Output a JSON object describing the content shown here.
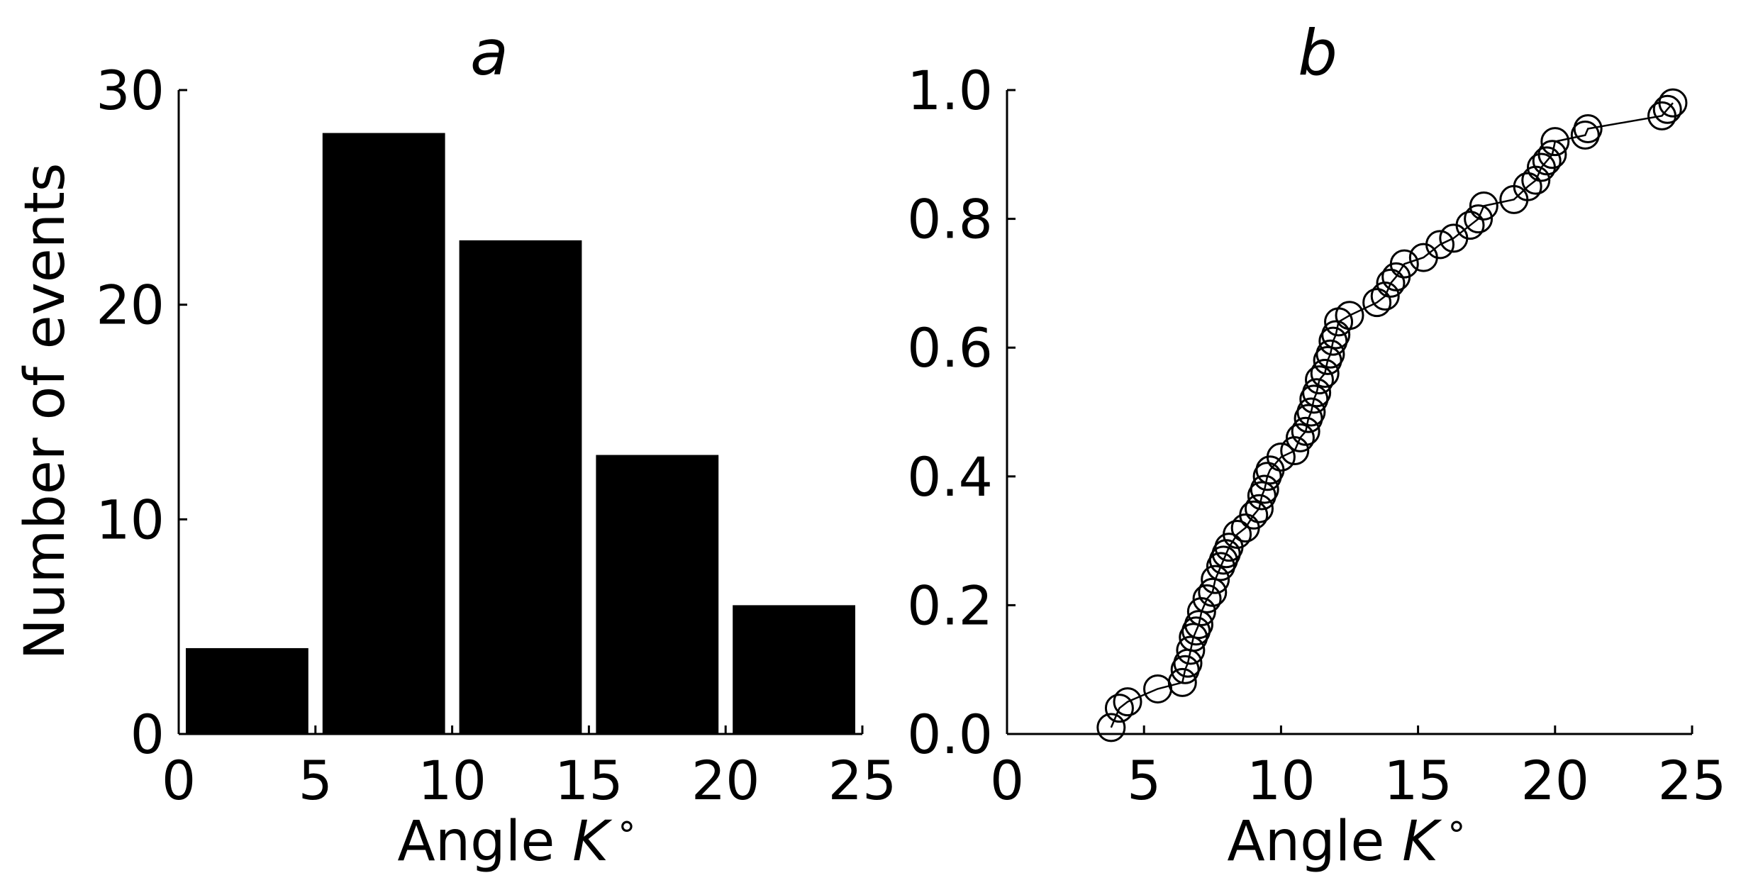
{
  "chart_data": [
    {
      "type": "bar",
      "panel": "a",
      "title": "a",
      "xlabel": "Angle K°",
      "xlabel_main": "Angle ",
      "xlabel_var": "K",
      "xlabel_unit": "∘",
      "ylabel": "Number of events",
      "xlim": [
        0,
        25
      ],
      "ylim": [
        0,
        30
      ],
      "xticks": [
        0,
        5,
        10,
        15,
        20,
        25
      ],
      "yticks": [
        0,
        10,
        20,
        30
      ],
      "bins": [
        [
          0,
          5
        ],
        [
          5,
          10
        ],
        [
          10,
          15
        ],
        [
          15,
          20
        ],
        [
          20,
          25
        ]
      ],
      "values": [
        4,
        28,
        23,
        13,
        6
      ],
      "bar_color": "#000000"
    },
    {
      "type": "line",
      "panel": "b",
      "title": "b",
      "xlabel": "Angle K°",
      "xlabel_main": "Angle ",
      "xlabel_var": "K",
      "xlabel_unit": "∘",
      "ylabel": "",
      "xlim": [
        0,
        25
      ],
      "ylim": [
        0,
        1
      ],
      "xticks": [
        0,
        5,
        10,
        15,
        20,
        25
      ],
      "yticks": [
        0.0,
        0.2,
        0.4,
        0.6,
        0.8,
        1.0
      ],
      "ytick_labels": [
        "0.0",
        "0.2",
        "0.4",
        "0.6",
        "0.8",
        "1.0"
      ],
      "marker": "open-circle",
      "x": [
        3.8,
        4.1,
        4.4,
        5.5,
        6.4,
        6.5,
        6.6,
        6.7,
        6.8,
        6.9,
        7.0,
        7.1,
        7.3,
        7.5,
        7.6,
        7.8,
        7.9,
        8.0,
        8.1,
        8.4,
        8.7,
        9.0,
        9.2,
        9.3,
        9.4,
        9.5,
        9.6,
        10.0,
        10.5,
        10.7,
        10.9,
        11.0,
        11.1,
        11.2,
        11.3,
        11.4,
        11.6,
        11.7,
        11.8,
        11.9,
        12.0,
        12.1,
        12.5,
        13.5,
        13.8,
        14.0,
        14.2,
        14.5,
        15.2,
        15.8,
        16.3,
        16.9,
        17.2,
        17.4,
        18.5,
        19.0,
        19.3,
        19.5,
        19.7,
        19.9,
        20.0,
        21.1,
        21.2,
        23.9,
        24.1,
        24.3
      ],
      "y": [
        0.01,
        0.04,
        0.05,
        0.07,
        0.08,
        0.1,
        0.11,
        0.13,
        0.15,
        0.16,
        0.17,
        0.19,
        0.21,
        0.22,
        0.24,
        0.26,
        0.27,
        0.28,
        0.29,
        0.31,
        0.32,
        0.34,
        0.35,
        0.37,
        0.38,
        0.4,
        0.41,
        0.43,
        0.44,
        0.46,
        0.47,
        0.49,
        0.5,
        0.52,
        0.53,
        0.55,
        0.56,
        0.58,
        0.59,
        0.61,
        0.62,
        0.64,
        0.65,
        0.67,
        0.68,
        0.7,
        0.71,
        0.73,
        0.74,
        0.76,
        0.77,
        0.79,
        0.8,
        0.82,
        0.83,
        0.85,
        0.86,
        0.88,
        0.89,
        0.9,
        0.92,
        0.93,
        0.94,
        0.96,
        0.97,
        0.98
      ]
    }
  ]
}
